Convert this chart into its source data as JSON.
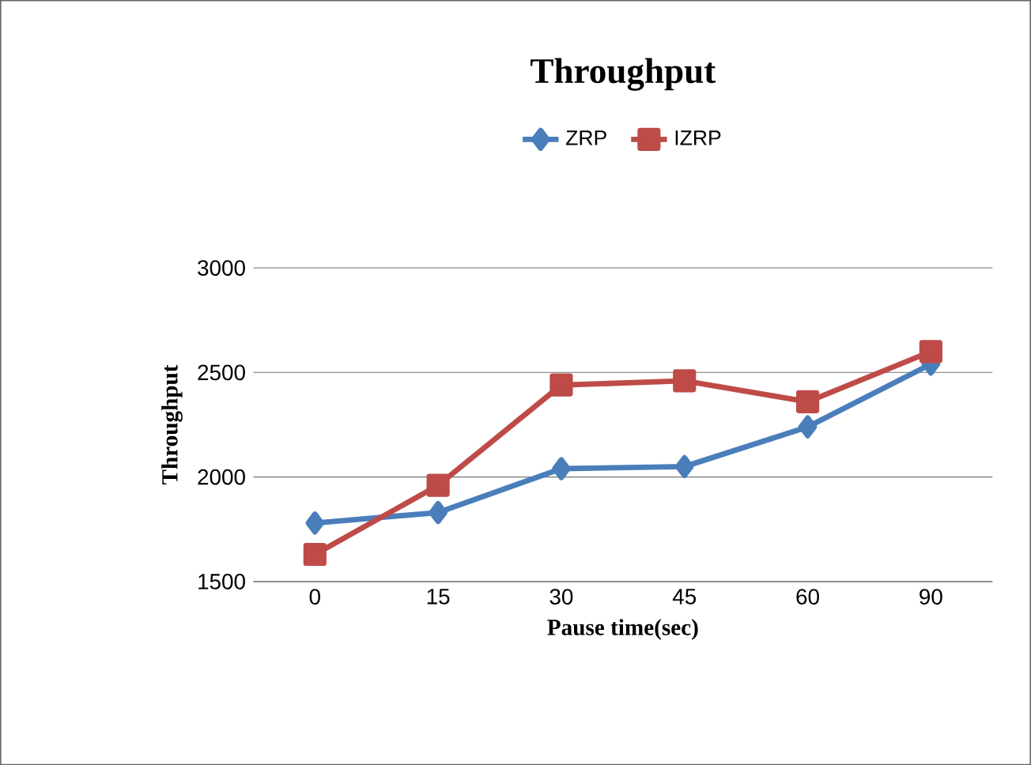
{
  "chart_data": {
    "type": "line",
    "title": "Throughput",
    "xlabel": "Pause time(sec)",
    "ylabel": "Throughput",
    "categories": [
      "0",
      "15",
      "30",
      "45",
      "60",
      "90"
    ],
    "series": [
      {
        "name": "ZRP",
        "color": "#4a7ebb",
        "marker": "diamond",
        "values": [
          1780,
          1830,
          2040,
          2050,
          2240,
          2540
        ]
      },
      {
        "name": "IZRP",
        "color": "#be4b48",
        "marker": "square",
        "values": [
          1630,
          1960,
          2440,
          2460,
          2360,
          2600
        ]
      }
    ],
    "ylim": [
      1500,
      3000
    ],
    "yticks": [
      1500,
      2000,
      2500,
      3000
    ],
    "grid": "y",
    "legend": "top",
    "line_style": "solid"
  }
}
